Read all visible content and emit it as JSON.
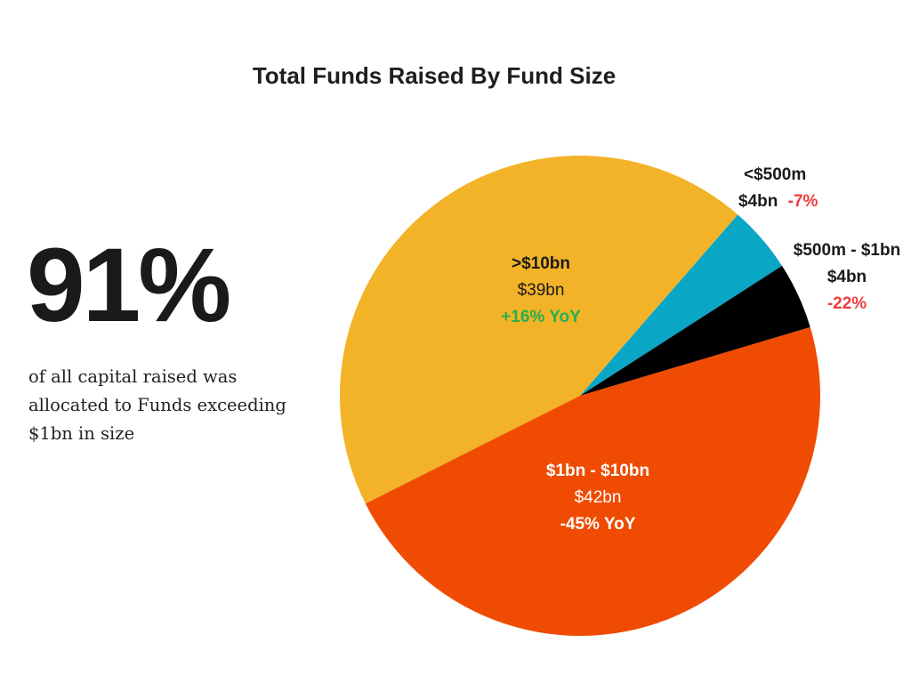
{
  "chart_data": {
    "type": "pie",
    "title": "Total Funds Raised By Fund Size",
    "unit": "$bn",
    "slices": [
      {
        "label": ">$10bn",
        "value": 39,
        "value_text": "$39bn",
        "change_text": "+16% YoY",
        "change_sign": "positive",
        "color": "#f2b328"
      },
      {
        "label": "<$500m",
        "value": 4,
        "value_text": "$4bn",
        "change_text": "-7%",
        "change_sign": "negative",
        "color": "#0aa6c6"
      },
      {
        "label": "$500m - $1bn",
        "value": 4,
        "value_text": "$4bn",
        "change_text": "-22%",
        "change_sign": "negative",
        "color": "#000000"
      },
      {
        "label": "$1bn - $10bn",
        "value": 42,
        "value_text": "$42bn",
        "change_text": "-45% YoY",
        "change_sign": "negative",
        "color": "#f04b02"
      }
    ]
  },
  "highlight": {
    "stat": "91%",
    "description": "of all capital raised was allocated to Funds exceeding $1bn in size"
  }
}
